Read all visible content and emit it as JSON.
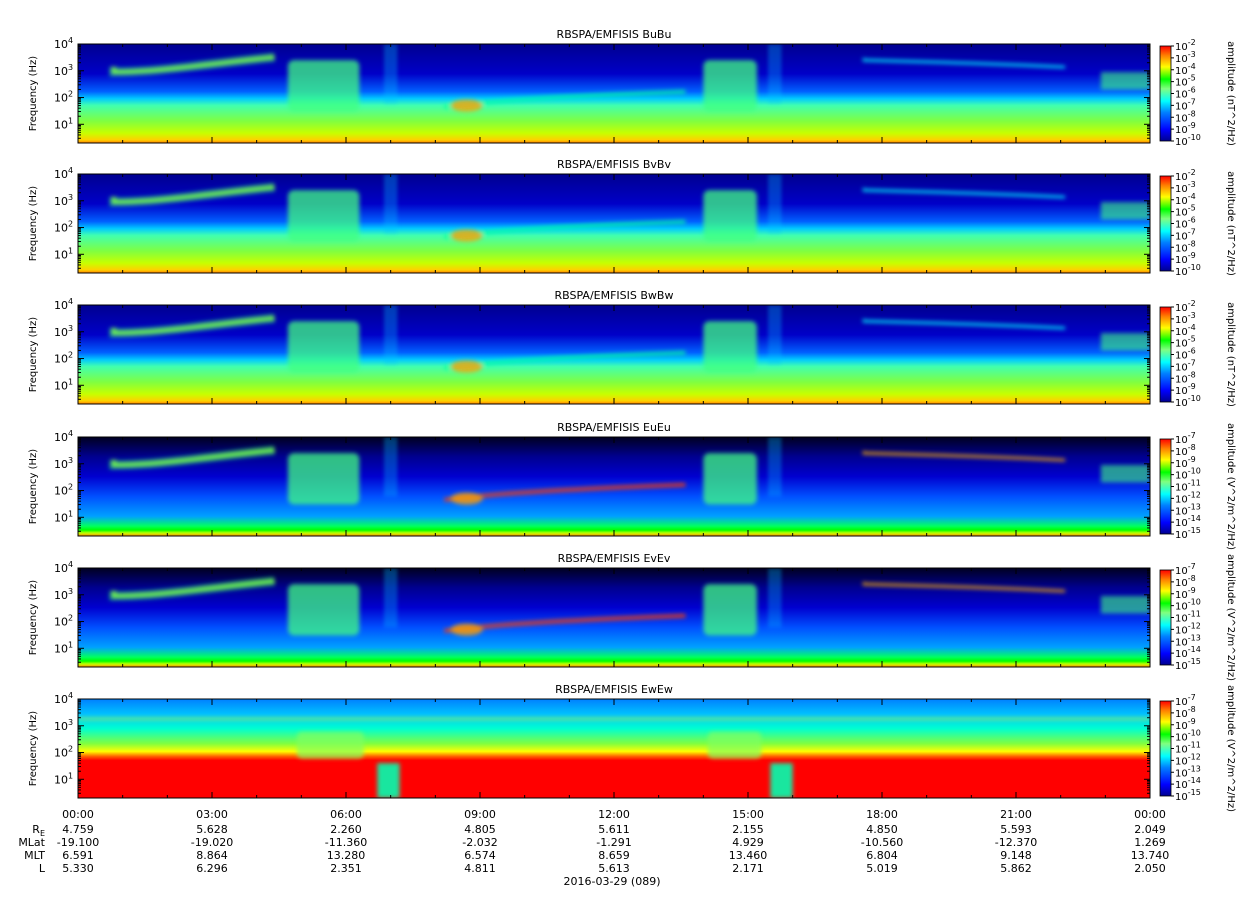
{
  "figure": {
    "date_label": "2016-03-29 (089)"
  },
  "chart_data": [
    {
      "type": "heatmap",
      "title": "RBSPA/EMFISIS  BuBu",
      "ylabel": "Frequency (Hz)",
      "yscale": "log",
      "ylim": [
        2,
        10000
      ],
      "y_ticks": [
        {
          "base": "10",
          "exp": "1",
          "v": 10
        },
        {
          "base": "10",
          "exp": "2",
          "v": 100
        },
        {
          "base": "10",
          "exp": "3",
          "v": 1000
        },
        {
          "base": "10",
          "exp": "4",
          "v": 10000
        }
      ],
      "colorbar": {
        "label": "amplitude (nT^2/Hz)",
        "scale": "log",
        "range": [
          1e-10,
          0.01
        ],
        "ticks": [
          {
            "base": "10",
            "exp": "-2"
          },
          {
            "base": "10",
            "exp": "-3"
          },
          {
            "base": "10",
            "exp": "-4"
          },
          {
            "base": "10",
            "exp": "-5"
          },
          {
            "base": "10",
            "exp": "-6"
          },
          {
            "base": "10",
            "exp": "-7"
          },
          {
            "base": "10",
            "exp": "-8"
          },
          {
            "base": "10",
            "exp": "-9"
          },
          {
            "base": "10",
            "exp": "-10"
          }
        ]
      }
    },
    {
      "type": "heatmap",
      "title": "RBSPA/EMFISIS  BvBv",
      "ylabel": "Frequency (Hz)",
      "yscale": "log",
      "ylim": [
        2,
        10000
      ],
      "y_ticks": [
        {
          "base": "10",
          "exp": "1",
          "v": 10
        },
        {
          "base": "10",
          "exp": "2",
          "v": 100
        },
        {
          "base": "10",
          "exp": "3",
          "v": 1000
        },
        {
          "base": "10",
          "exp": "4",
          "v": 10000
        }
      ],
      "colorbar": {
        "label": "amplitude (nT^2/Hz)",
        "scale": "log",
        "range": [
          1e-10,
          0.01
        ],
        "ticks": [
          {
            "base": "10",
            "exp": "-2"
          },
          {
            "base": "10",
            "exp": "-3"
          },
          {
            "base": "10",
            "exp": "-4"
          },
          {
            "base": "10",
            "exp": "-5"
          },
          {
            "base": "10",
            "exp": "-6"
          },
          {
            "base": "10",
            "exp": "-7"
          },
          {
            "base": "10",
            "exp": "-8"
          },
          {
            "base": "10",
            "exp": "-9"
          },
          {
            "base": "10",
            "exp": "-10"
          }
        ]
      }
    },
    {
      "type": "heatmap",
      "title": "RBSPA/EMFISIS  BwBw",
      "ylabel": "Frequency (Hz)",
      "yscale": "log",
      "ylim": [
        2,
        10000
      ],
      "y_ticks": [
        {
          "base": "10",
          "exp": "1",
          "v": 10
        },
        {
          "base": "10",
          "exp": "2",
          "v": 100
        },
        {
          "base": "10",
          "exp": "3",
          "v": 1000
        },
        {
          "base": "10",
          "exp": "4",
          "v": 10000
        }
      ],
      "colorbar": {
        "label": "amplitude (nT^2/Hz)",
        "scale": "log",
        "range": [
          1e-10,
          0.01
        ],
        "ticks": [
          {
            "base": "10",
            "exp": "-2"
          },
          {
            "base": "10",
            "exp": "-3"
          },
          {
            "base": "10",
            "exp": "-4"
          },
          {
            "base": "10",
            "exp": "-5"
          },
          {
            "base": "10",
            "exp": "-6"
          },
          {
            "base": "10",
            "exp": "-7"
          },
          {
            "base": "10",
            "exp": "-8"
          },
          {
            "base": "10",
            "exp": "-9"
          },
          {
            "base": "10",
            "exp": "-10"
          }
        ]
      }
    },
    {
      "type": "heatmap",
      "title": "RBSPA/EMFISIS  EuEu",
      "ylabel": "Frequency (Hz)",
      "yscale": "log",
      "ylim": [
        2,
        10000
      ],
      "y_ticks": [
        {
          "base": "10",
          "exp": "1",
          "v": 10
        },
        {
          "base": "10",
          "exp": "2",
          "v": 100
        },
        {
          "base": "10",
          "exp": "3",
          "v": 1000
        },
        {
          "base": "10",
          "exp": "4",
          "v": 10000
        }
      ],
      "colorbar": {
        "label": "amplitude (V^2/m^2/Hz)",
        "scale": "log",
        "range": [
          1e-15,
          1e-07
        ],
        "ticks": [
          {
            "base": "10",
            "exp": "-7"
          },
          {
            "base": "10",
            "exp": "-8"
          },
          {
            "base": "10",
            "exp": "-9"
          },
          {
            "base": "10",
            "exp": "-10"
          },
          {
            "base": "10",
            "exp": "-11"
          },
          {
            "base": "10",
            "exp": "-12"
          },
          {
            "base": "10",
            "exp": "-13"
          },
          {
            "base": "10",
            "exp": "-14"
          },
          {
            "base": "10",
            "exp": "-15"
          }
        ]
      }
    },
    {
      "type": "heatmap",
      "title": "RBSPA/EMFISIS  EvEv",
      "ylabel": "Frequency (Hz)",
      "yscale": "log",
      "ylim": [
        2,
        10000
      ],
      "y_ticks": [
        {
          "base": "10",
          "exp": "1",
          "v": 10
        },
        {
          "base": "10",
          "exp": "2",
          "v": 100
        },
        {
          "base": "10",
          "exp": "3",
          "v": 1000
        },
        {
          "base": "10",
          "exp": "4",
          "v": 10000
        }
      ],
      "colorbar": {
        "label": "amplitude (V^2/m^2/Hz)",
        "scale": "log",
        "range": [
          1e-15,
          1e-07
        ],
        "ticks": [
          {
            "base": "10",
            "exp": "-7"
          },
          {
            "base": "10",
            "exp": "-8"
          },
          {
            "base": "10",
            "exp": "-9"
          },
          {
            "base": "10",
            "exp": "-10"
          },
          {
            "base": "10",
            "exp": "-11"
          },
          {
            "base": "10",
            "exp": "-12"
          },
          {
            "base": "10",
            "exp": "-13"
          },
          {
            "base": "10",
            "exp": "-14"
          },
          {
            "base": "10",
            "exp": "-15"
          }
        ]
      }
    },
    {
      "type": "heatmap",
      "title": "RBSPA/EMFISIS  EwEw",
      "ylabel": "Frequency (Hz)",
      "yscale": "log",
      "ylim": [
        2,
        10000
      ],
      "y_ticks": [
        {
          "base": "10",
          "exp": "1",
          "v": 10
        },
        {
          "base": "10",
          "exp": "2",
          "v": 100
        },
        {
          "base": "10",
          "exp": "3",
          "v": 1000
        },
        {
          "base": "10",
          "exp": "4",
          "v": 10000
        }
      ],
      "colorbar": {
        "label": "amplitude (V^2/m^2/Hz)",
        "scale": "log",
        "range": [
          1e-15,
          1e-07
        ],
        "ticks": [
          {
            "base": "10",
            "exp": "-7"
          },
          {
            "base": "10",
            "exp": "-8"
          },
          {
            "base": "10",
            "exp": "-9"
          },
          {
            "base": "10",
            "exp": "-10"
          },
          {
            "base": "10",
            "exp": "-11"
          },
          {
            "base": "10",
            "exp": "-12"
          },
          {
            "base": "10",
            "exp": "-13"
          },
          {
            "base": "10",
            "exp": "-14"
          },
          {
            "base": "10",
            "exp": "-15"
          }
        ]
      }
    }
  ],
  "time_axis": {
    "range_hours": [
      0,
      24
    ],
    "tick_hours": [
      0,
      3,
      6,
      9,
      12,
      15,
      18,
      21,
      24
    ],
    "tick_labels": [
      "00:00",
      "03:00",
      "06:00",
      "09:00",
      "12:00",
      "15:00",
      "18:00",
      "21:00",
      "00:00"
    ]
  },
  "ephemeris": [
    {
      "name": "R",
      "sub": "E",
      "values": [
        "4.759",
        "5.628",
        "2.260",
        "4.805",
        "5.611",
        "2.155",
        "4.850",
        "5.593",
        "2.049"
      ]
    },
    {
      "name": "MLat",
      "sub": "",
      "values": [
        "-19.100",
        "-19.020",
        "-11.360",
        "-2.032",
        "-1.291",
        "4.929",
        "-10.560",
        "-12.370",
        "1.269"
      ]
    },
    {
      "name": "MLT",
      "sub": "",
      "values": [
        "6.591",
        "8.864",
        "13.280",
        "6.574",
        "8.659",
        "13.460",
        "6.804",
        "9.148",
        "13.740"
      ]
    },
    {
      "name": "L",
      "sub": "",
      "values": [
        "5.330",
        "6.296",
        "2.351",
        "4.811",
        "5.613",
        "2.171",
        "5.019",
        "5.862",
        "2.050"
      ]
    }
  ],
  "colors": {
    "scale": [
      "#00008f",
      "#0000ff",
      "#0080ff",
      "#00ffff",
      "#80ff80",
      "#00ff00",
      "#ffff00",
      "#ff8000",
      "#ff0000"
    ]
  }
}
